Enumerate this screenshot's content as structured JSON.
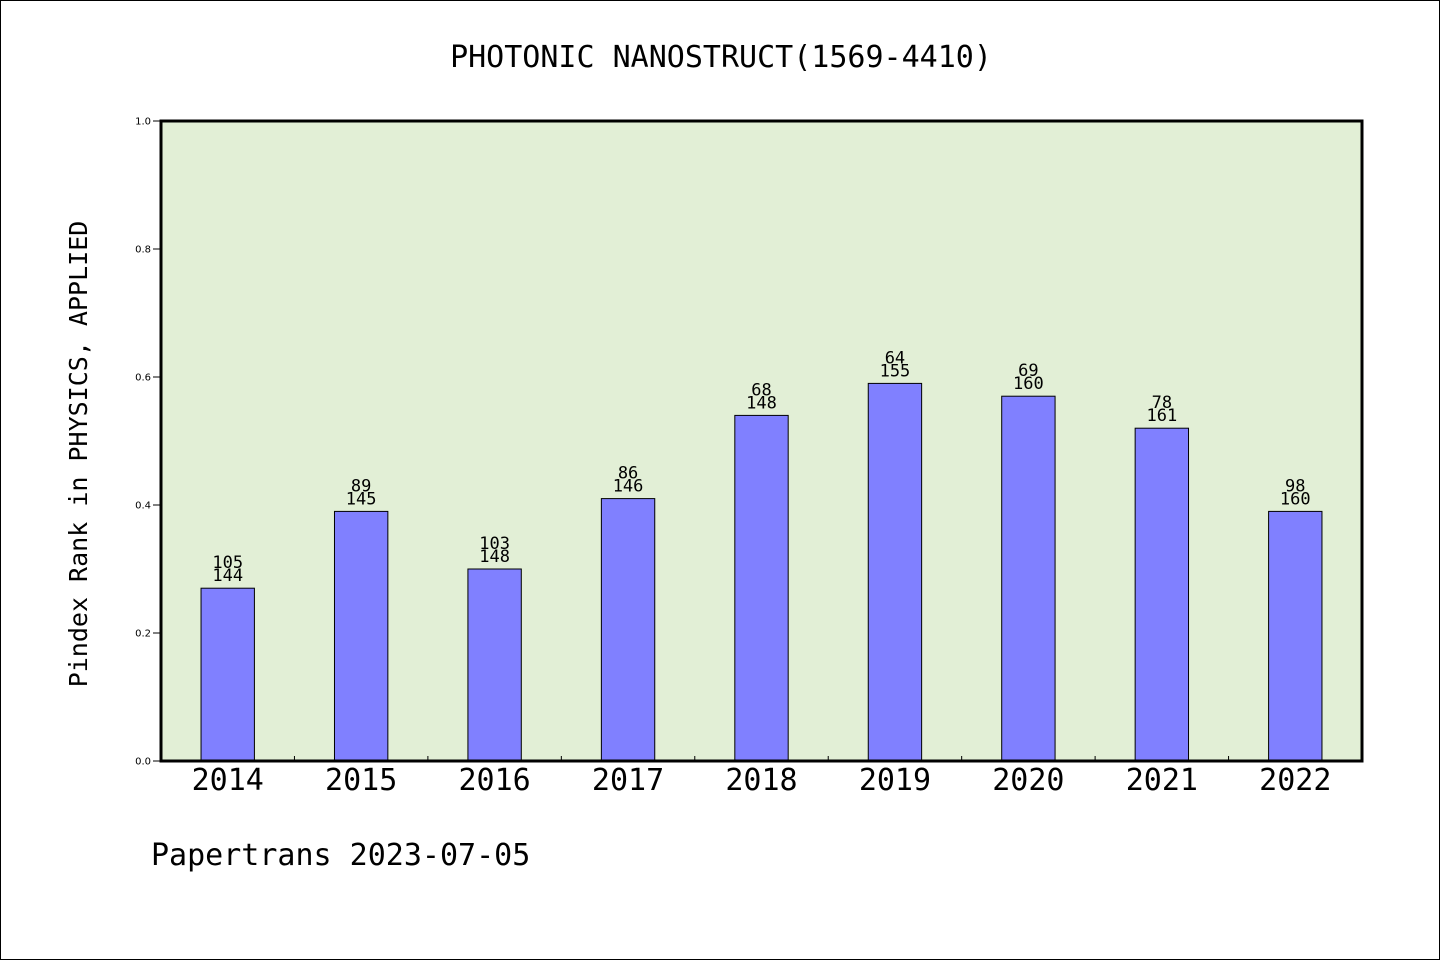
{
  "chart_data": {
    "type": "bar",
    "title": "PHOTONIC NANOSTRUCT(1569-4410)",
    "ylabel": "Pindex Rank in PHYSICS, APPLIED",
    "xlabel": "",
    "categories": [
      "2014",
      "2015",
      "2016",
      "2017",
      "2018",
      "2019",
      "2020",
      "2021",
      "2022"
    ],
    "values": [
      0.27,
      0.39,
      0.3,
      0.41,
      0.54,
      0.59,
      0.57,
      0.52,
      0.39
    ],
    "labels_top": [
      "105",
      "89",
      "103",
      "86",
      "68",
      "64",
      "69",
      "78",
      "98"
    ],
    "labels_bottom": [
      "144",
      "145",
      "148",
      "146",
      "148",
      "155",
      "160",
      "161",
      "160"
    ],
    "ylim": [
      0.0,
      1.0
    ],
    "yticks": [
      "0.0",
      "0.2",
      "0.4",
      "0.6",
      "0.8",
      "1.0"
    ],
    "grid": false,
    "colors": {
      "bar": "#8080ff",
      "plot_background": "#e2efd6",
      "axis": "#000000"
    }
  },
  "footer": "Papertrans 2023-07-05"
}
